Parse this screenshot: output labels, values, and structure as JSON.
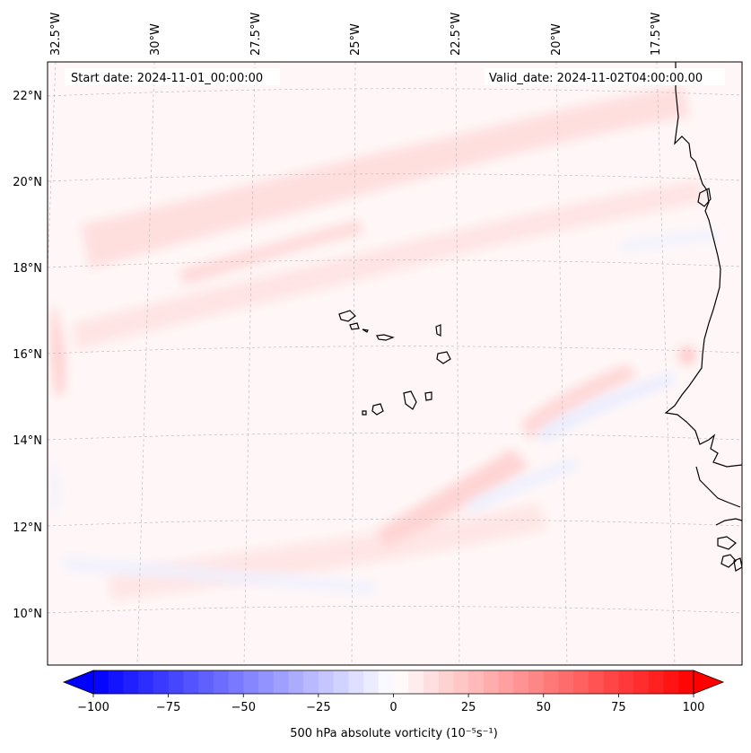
{
  "map": {
    "start_label": "Start date: 2024-11-01_00:00:00",
    "valid_label": "Valid_date: 2024-11-02T04:00:00.00",
    "lon_labels": [
      "32.5°W",
      "30°W",
      "27.5°W",
      "25°W",
      "22.5°W",
      "20°W",
      "17.5°W"
    ],
    "lat_labels": [
      "22°N",
      "20°N",
      "18°N",
      "16°N",
      "14°N",
      "12°N",
      "10°N"
    ],
    "gridlines": true,
    "coastline_color": "#000000"
  },
  "colorbar": {
    "label": "500 hPa absolute vorticity (10⁻⁵s⁻¹)",
    "ticks": [
      "−100",
      "−75",
      "−50",
      "−25",
      "0",
      "25",
      "50",
      "75",
      "100"
    ],
    "min": -100,
    "max": 100,
    "colormap": "bwr",
    "extend": "both",
    "levels": 41,
    "low_color": "#0000ff",
    "mid_color": "#ffffff",
    "high_color": "#ff0000"
  }
}
